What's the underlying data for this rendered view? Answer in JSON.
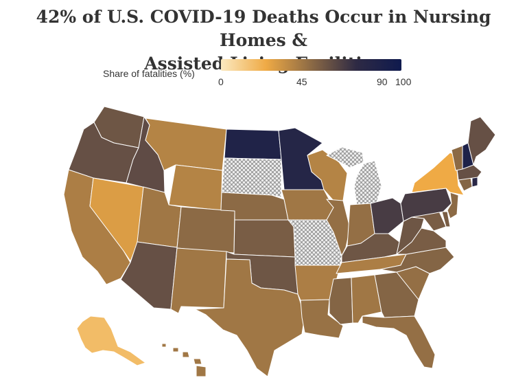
{
  "title_line1": "42% of U.S. COVID-19 Deaths Occur in Nursing Homes &",
  "title_line2": "Assisted Living Facilities",
  "legend": {
    "label": "Share of fatalities (%)",
    "ticks": [
      "0",
      "45",
      "90",
      "100"
    ],
    "tick_values": [
      0,
      45,
      90,
      100
    ],
    "colors": [
      "#fbe9c0",
      "#efaa45",
      "#8c6a45",
      "#2e2a44",
      "#0f1a4e"
    ],
    "no_data_color": "#a9a9a9"
  },
  "states": {
    "WA": 58,
    "OR": 60,
    "CA": 42,
    "NV": 30,
    "ID": 62,
    "MT": 40,
    "WY": 40,
    "UT": 45,
    "AZ": 60,
    "NM": 45,
    "CO": 50,
    "ND": 86,
    "SD": null,
    "NE": 50,
    "KS": 55,
    "OK": 58,
    "TX": 45,
    "MN": 82,
    "IA": 45,
    "MO": null,
    "AR": 42,
    "LA": 47,
    "WI": 40,
    "IL": 48,
    "MI": null,
    "IN": 48,
    "OH": 68,
    "KY": 58,
    "TN": 42,
    "MS": 52,
    "AL": 45,
    "GA": 52,
    "FL": 48,
    "SC": 48,
    "NC": 52,
    "VA": 55,
    "WV": 58,
    "PA": 68,
    "NY": 25,
    "VT": 50,
    "NH": 88,
    "ME": 60,
    "MA": 60,
    "RI": 80,
    "CT": 52,
    "NJ": 50,
    "DE": 55,
    "MD": 55,
    "AK": 18,
    "HI": 45
  }
}
